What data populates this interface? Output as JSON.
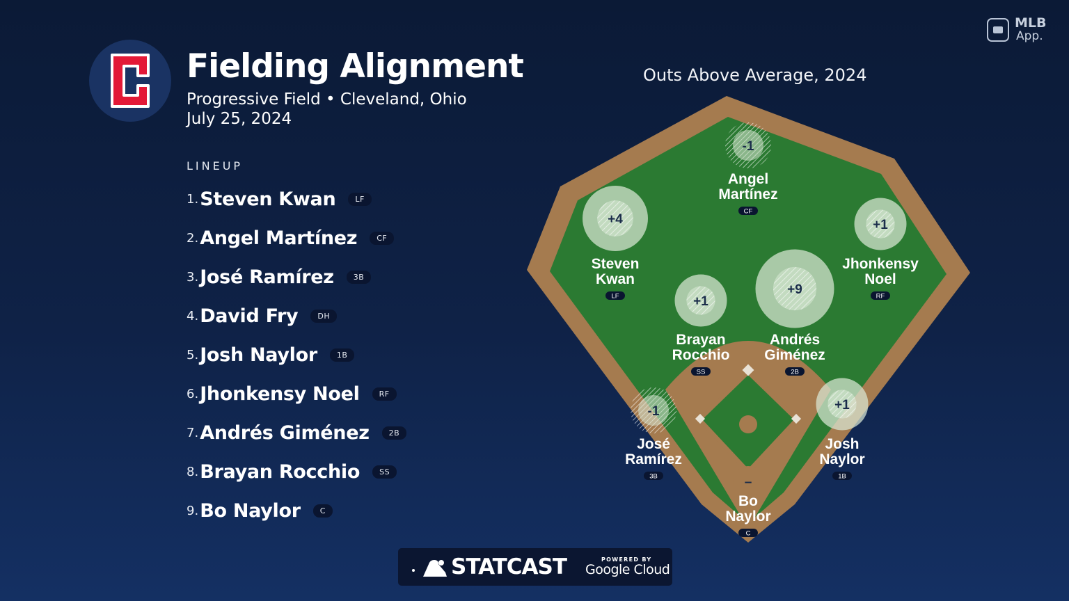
{
  "header": {
    "title": "Fielding Alignment",
    "subtitle": "Progressive Field • Cleveland, Ohio",
    "date": "July 25, 2024",
    "team_logo_letter": "C",
    "team_colors": {
      "navy": "#1a3363",
      "red": "#e31937"
    }
  },
  "lineup": {
    "label": "LINEUP",
    "players": [
      {
        "num": "1.",
        "name": "Steven Kwan",
        "pos": "LF"
      },
      {
        "num": "2.",
        "name": "Angel Martínez",
        "pos": "CF"
      },
      {
        "num": "3.",
        "name": "José Ramírez",
        "pos": "3B"
      },
      {
        "num": "4.",
        "name": "David Fry",
        "pos": "DH"
      },
      {
        "num": "5.",
        "name": "Josh Naylor",
        "pos": "1B"
      },
      {
        "num": "6.",
        "name": "Jhonkensy Noel",
        "pos": "RF"
      },
      {
        "num": "7.",
        "name": "Andrés Giménez",
        "pos": "2B"
      },
      {
        "num": "8.",
        "name": "Brayan Rocchio",
        "pos": "SS"
      },
      {
        "num": "9.",
        "name": "Bo Naylor",
        "pos": "C"
      }
    ]
  },
  "field": {
    "title": "Outs Above Average, 2024",
    "colors": {
      "grass": "#2b7a32",
      "dirt": "#a57b4f",
      "bubble": "#d9e8d4"
    },
    "positions": [
      {
        "id": "lf",
        "first": "Steven",
        "last": "Kwan",
        "pos": "LF",
        "oaa": "+4",
        "oaa_value": 4
      },
      {
        "id": "cf",
        "first": "Angel",
        "last": "Martínez",
        "pos": "CF",
        "oaa": "-1",
        "oaa_value": -1
      },
      {
        "id": "rf",
        "first": "Jhonkensy",
        "last": "Noel",
        "pos": "RF",
        "oaa": "+1",
        "oaa_value": 1
      },
      {
        "id": "ss",
        "first": "Brayan",
        "last": "Rocchio",
        "pos": "SS",
        "oaa": "+1",
        "oaa_value": 1
      },
      {
        "id": "2b",
        "first": "Andrés",
        "last": "Giménez",
        "pos": "2B",
        "oaa": "+9",
        "oaa_value": 9
      },
      {
        "id": "3b",
        "first": "José",
        "last": "Ramírez",
        "pos": "3B",
        "oaa": "-1",
        "oaa_value": -1
      },
      {
        "id": "1b",
        "first": "Josh",
        "last": "Naylor",
        "pos": "1B",
        "oaa": "+1",
        "oaa_value": 1
      },
      {
        "id": "c",
        "first": "Bo",
        "last": "Naylor",
        "pos": "C",
        "oaa": "–",
        "oaa_value": null
      }
    ]
  },
  "branding": {
    "mlb_app_line1": "MLB",
    "mlb_app_line2": "App.",
    "statcast": "STATCAST",
    "powered_by": "POWERED BY",
    "google_cloud": "Google Cloud"
  }
}
